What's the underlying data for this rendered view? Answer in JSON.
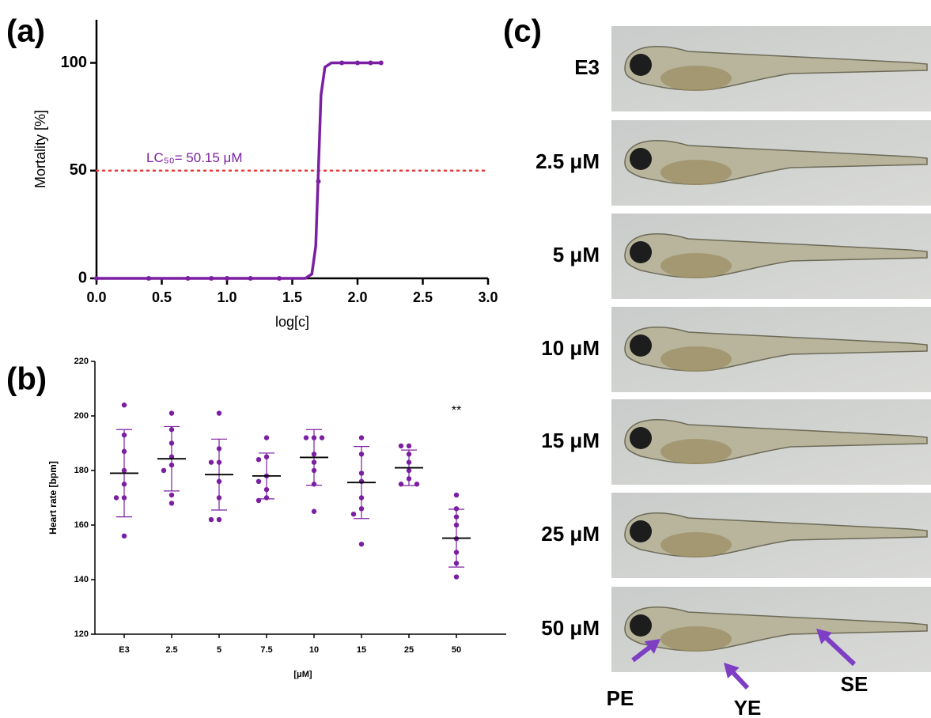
{
  "chart_data": [
    {
      "type": "line",
      "title": "(a)",
      "x_label": "log[c]",
      "y_label": "Mortality [%]",
      "xlim": [
        0,
        3
      ],
      "ylim": [
        0,
        120
      ],
      "xticks": [
        {
          "value": 0,
          "label": "0.0"
        },
        {
          "value": 0.5,
          "label": "0.5"
        },
        {
          "value": 1,
          "label": "1.0"
        },
        {
          "value": 1.5,
          "label": "1.5"
        },
        {
          "value": 2,
          "label": "2.0"
        },
        {
          "value": 2.5,
          "label": "2.5"
        },
        {
          "value": 3,
          "label": "3.0"
        }
      ],
      "yticks": [
        0,
        50,
        100
      ],
      "series": [
        {
          "color": "#7b1fa2",
          "mode": "markers",
          "x": [
            0,
            0.4,
            0.7,
            0.88,
            1.0,
            1.18,
            1.4,
            1.7,
            1.88,
            2.0,
            2.1,
            2.18
          ],
          "values": [
            0,
            0,
            0,
            0,
            0,
            0,
            0,
            45,
            100,
            100,
            100,
            100
          ]
        },
        {
          "color": "#7b1fa2",
          "mode": "line",
          "x": [
            0,
            1.6,
            1.65,
            1.68,
            1.7,
            1.72,
            1.75,
            1.8,
            2.18
          ],
          "values": [
            0,
            0,
            2,
            15,
            50,
            85,
            98,
            100,
            100
          ]
        }
      ],
      "reference_line": {
        "value": 50,
        "color": "#e53935",
        "label": "LC₅₀= 50.15 μM",
        "label_color": "#7b1fa2"
      }
    },
    {
      "type": "strip",
      "title": "(b)",
      "x_label": "[μM]",
      "y_label": "Heart rate [bpm]",
      "categories": [
        "E3",
        "2.5",
        "5",
        "7.5",
        "10",
        "15",
        "25",
        "50"
      ],
      "ylim": [
        120,
        220
      ],
      "yticks": [
        120,
        140,
        160,
        180,
        200,
        220
      ],
      "color": "#7b1fa2",
      "points": [
        [
          204,
          193,
          187,
          180,
          175,
          170,
          170,
          156
        ],
        [
          201,
          195,
          190,
          185,
          182,
          180,
          171,
          168
        ],
        [
          201,
          188,
          183,
          183,
          176,
          170,
          162,
          162
        ],
        [
          192,
          185,
          184,
          178,
          176,
          173,
          170,
          169
        ],
        [
          192,
          192,
          192,
          186,
          183,
          180,
          175,
          165
        ],
        [
          192,
          186,
          179,
          176,
          170,
          166,
          164,
          153
        ],
        [
          189,
          189,
          186,
          183,
          180,
          177,
          175,
          175
        ],
        [
          171,
          166,
          163,
          160,
          155,
          150,
          146,
          141
        ]
      ],
      "mean": [
        179,
        184.3,
        178.5,
        178,
        184.8,
        175.6,
        181,
        155.2
      ],
      "sd": [
        16,
        11.8,
        13,
        8.4,
        10.2,
        13.2,
        6.5,
        10.6
      ],
      "annotation": {
        "category": 7,
        "text": "**"
      }
    }
  ],
  "images": {
    "title": "(c)",
    "labels": [
      "E3",
      "2.5 μM",
      "5 μM",
      "10 μM",
      "15 μM",
      "25 μM",
      "50 μM"
    ],
    "arrows": [
      "PE",
      "YE",
      "SE"
    ]
  }
}
